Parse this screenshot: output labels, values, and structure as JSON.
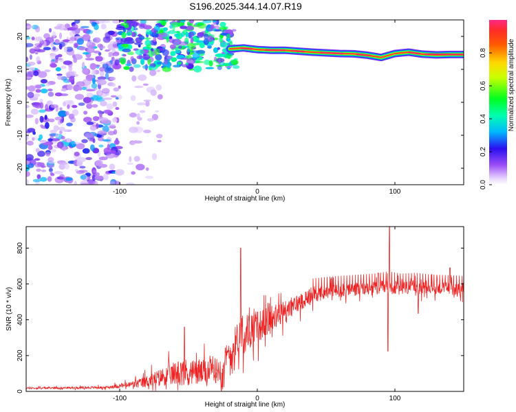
{
  "title": "S196.2025.344.14.07.R19",
  "colors": {
    "snr_line": "#ee2222",
    "ridge_core": "#ff2a5a",
    "noise_blob": "#6a1ee8",
    "axis": "#000000"
  },
  "chart_data": [
    {
      "type": "heatmap",
      "name": "spectrogram",
      "xlabel": "Height of straight line (km)",
      "ylabel": "Frequency (Hz)",
      "xlim": [
        -168,
        150
      ],
      "ylim": [
        -25,
        25
      ],
      "xticks": [
        -100,
        0,
        100
      ],
      "xtick_labels": [
        "-100",
        "0",
        "100"
      ],
      "yticks": [
        -20,
        -10,
        0,
        10,
        20
      ],
      "ytick_labels": [
        "-20",
        "-10",
        "0",
        "10",
        "20"
      ],
      "colorbar": {
        "label": "Normalized spectral amplitude",
        "range": [
          0,
          1
        ],
        "ticks": [
          0.0,
          0.2,
          0.4,
          0.6,
          0.8
        ],
        "tick_labels": [
          "0.0",
          "0.2",
          "0.4",
          "0.6",
          "0.8"
        ]
      },
      "ridge": {
        "description_points": [
          [
            -20,
            16.2
          ],
          [
            -10,
            16.5
          ],
          [
            0,
            16.0
          ],
          [
            10,
            15.8
          ],
          [
            20,
            15.8
          ],
          [
            30,
            15.5
          ],
          [
            40,
            15.2
          ],
          [
            50,
            15.0
          ],
          [
            60,
            14.8
          ],
          [
            70,
            14.7
          ],
          [
            80,
            14.3
          ],
          [
            90,
            13.6
          ],
          [
            100,
            14.8
          ],
          [
            110,
            15.2
          ],
          [
            120,
            14.6
          ],
          [
            130,
            14.4
          ],
          [
            140,
            14.5
          ],
          [
            150,
            14.5
          ]
        ],
        "peak_amplitude": 0.95
      },
      "noise_regions": [
        {
          "x_range": [
            -168,
            -100
          ],
          "f_range": [
            -25,
            25
          ],
          "amplitude": 0.25
        },
        {
          "x_range": [
            -100,
            -15
          ],
          "f_range": [
            10,
            25
          ],
          "amplitude": 0.4
        },
        {
          "x_range": [
            -95,
            -70
          ],
          "f_range": [
            -25,
            10
          ],
          "amplitude": 0.08
        }
      ]
    },
    {
      "type": "line",
      "name": "snr",
      "xlabel": "Height of straight line (km)",
      "ylabel": "SNR (10 * v/v)",
      "xlim": [
        -168,
        150
      ],
      "ylim": [
        0,
        920
      ],
      "xticks": [
        -100,
        0,
        100
      ],
      "xtick_labels": [
        "-100",
        "0",
        "100"
      ],
      "yticks": [
        0,
        200,
        400,
        600,
        800
      ],
      "ytick_labels": [
        "0",
        "200",
        "400",
        "600",
        "800"
      ],
      "series": [
        {
          "name": "SNR",
          "baseline_x": [
            -168,
            -140,
            -110,
            -95,
            -85,
            -70,
            -55,
            -40,
            -28,
            -20,
            -12,
            -5,
            5,
            15,
            25,
            35,
            45,
            55,
            65,
            75,
            85,
            95,
            105,
            115,
            125,
            135,
            150
          ],
          "baseline_y": [
            18,
            20,
            22,
            35,
            45,
            80,
            110,
            105,
            120,
            200,
            330,
            340,
            380,
            420,
            470,
            520,
            545,
            560,
            565,
            570,
            575,
            580,
            575,
            580,
            578,
            575,
            570
          ],
          "noise_amplitude": [
            8,
            8,
            10,
            20,
            40,
            70,
            110,
            100,
            100,
            140,
            150,
            140,
            120,
            100,
            80,
            70,
            60,
            55,
            55,
            55,
            55,
            60,
            55,
            55,
            50,
            50,
            50
          ],
          "spikes": [
            [
              -12,
              800
            ],
            [
              96,
              935
            ],
            [
              95,
              225
            ],
            [
              -53,
              360
            ],
            [
              117,
              435
            ],
            [
              88,
              660
            ],
            [
              140,
              690
            ]
          ]
        }
      ]
    }
  ]
}
